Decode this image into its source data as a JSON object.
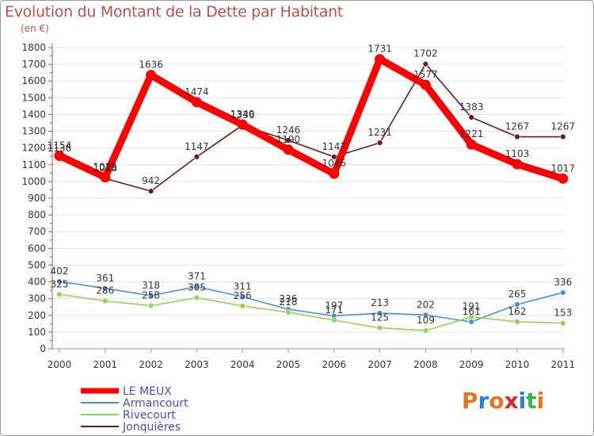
{
  "title": "Evolution du Montant de la Dette par Habitant",
  "subtitle": "(en €)",
  "logo": {
    "text": "Proxiti",
    "colors": [
      "#e8731a",
      "#2b7fd6",
      "#e8731a",
      "#d62b2b",
      "#2b7fd6",
      "#39b54a",
      "#e8731a"
    ]
  },
  "chart_data": {
    "type": "line",
    "categories": [
      "2000",
      "2001",
      "2002",
      "2003",
      "2004",
      "2005",
      "2006",
      "2007",
      "2008",
      "2009",
      "2010",
      "2011"
    ],
    "ylim": [
      0,
      1800
    ],
    "yticks": [
      0,
      100,
      200,
      300,
      400,
      500,
      600,
      700,
      800,
      900,
      1000,
      1100,
      1200,
      1300,
      1400,
      1500,
      1600,
      1700,
      1800
    ],
    "grid": "horizontal",
    "series": [
      {
        "name": "LE MEUX",
        "color": "#ff0000",
        "values": [
          1154,
          1025,
          1636,
          1474,
          1340,
          1190,
          1046,
          1731,
          1577,
          1221,
          1103,
          1017
        ],
        "labels": [
          "1154",
          "1025",
          "1636",
          "1474",
          "1340",
          "1190",
          "1046",
          "1731",
          "1577",
          "1221",
          "1103",
          "1017"
        ]
      },
      {
        "name": "Armancourt",
        "color": "#4a90d9",
        "values": [
          402,
          361,
          318,
          371,
          311,
          236,
          197,
          213,
          202,
          161,
          265,
          336
        ],
        "labels": [
          "402",
          "361",
          "318",
          "371",
          "311",
          "236",
          "197",
          "213",
          "202",
          "161",
          "265",
          "336"
        ]
      },
      {
        "name": "Rivecourt",
        "color": "#8fd452",
        "values": [
          325,
          286,
          258,
          305,
          256,
          218,
          171,
          125,
          109,
          191,
          162,
          153
        ],
        "labels": [
          "325",
          "286",
          "258",
          "305",
          "256",
          "218",
          "171",
          "125",
          "109",
          "191",
          "162",
          "153"
        ]
      },
      {
        "name": "Jonquières",
        "color": "#6b1a22",
        "values": [
          1136,
          1018,
          942,
          1147,
          1336,
          1246,
          1147,
          1231,
          1702,
          1383,
          1267,
          1267
        ],
        "labels": [
          "1136",
          "1018",
          "942",
          "1147",
          "1336",
          "1246",
          "1147",
          "1231",
          "1702",
          "1383",
          "1267",
          "1267"
        ]
      }
    ]
  }
}
